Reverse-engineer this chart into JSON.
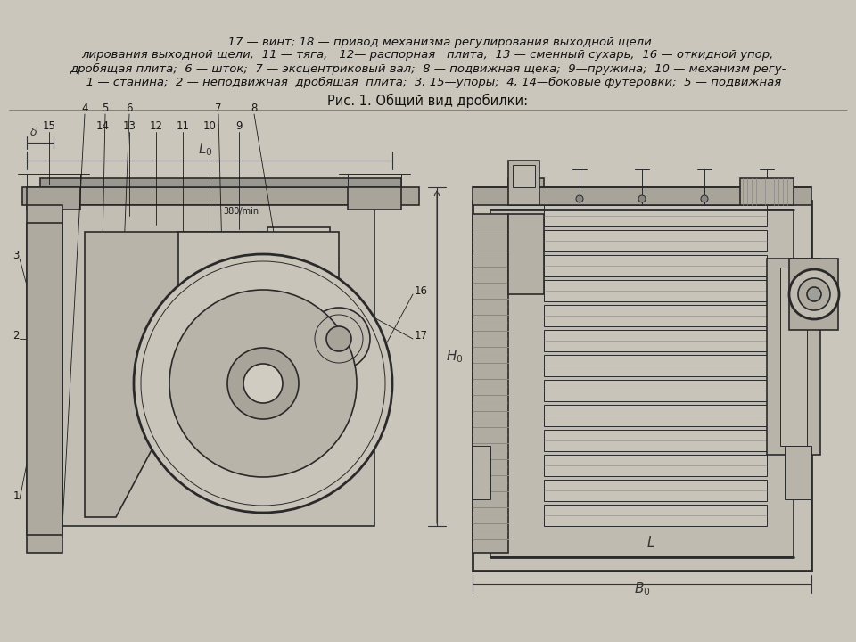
{
  "background_color": "#cac6bc",
  "figure_width": 9.6,
  "figure_height": 7.2,
  "dpi": 100,
  "title_text": "Рис. 1. Общий вид дробилки:",
  "caption_line1": "   1 — станина;  2 — неподвижная  дробящая  плита;  3, 15—упоры;  4, 14—боковые футеровки;  5 — подвижная",
  "caption_line2": "дробящая плита;  6 — шток;  7 — эксцентриковый вал;  8 — подвижная щека;  9—пружина;  10 — механизм регу-",
  "caption_line3": "лирования выходной щели;  11 — тяга;   12— распорная   плита;  13 — сменный сухарь;  16 — откидной упор;",
  "caption_line4": "      17 — винт; 18 — привод механизма регулирования выходной щели"
}
